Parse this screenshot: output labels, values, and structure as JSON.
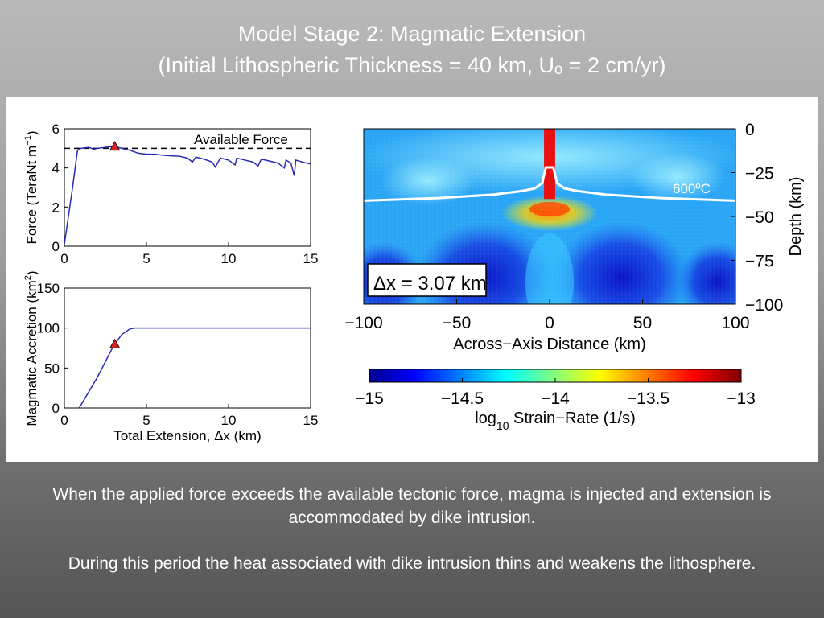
{
  "title": {
    "line1": "Model Stage 2: Magmatic Extension",
    "line2": "(Initial Lithospheric Thickness = 40 km, Uₒ = 2 cm/yr)"
  },
  "captions": [
    "When the applied force exceeds the available tectonic force, magma is injected and extension is accommodated by dike intrusion.",
    "During this period the heat associated with dike intrusion thins and weakens the lithosphere."
  ],
  "colors": {
    "line": "#2b2bb0",
    "marker": "#d42020",
    "background_dark": "#555555"
  },
  "chart_data": [
    {
      "type": "line",
      "name": "force",
      "ylabel": "Force (TeraNt m",
      "ylabel_sup": "−1",
      "ylabel_close": ")",
      "xlim": [
        0,
        15
      ],
      "ylim": [
        0,
        6
      ],
      "xticks": [
        "0",
        "5",
        "10",
        "15"
      ],
      "yticks": [
        "0",
        "2",
        "4",
        "6"
      ],
      "reference_line": {
        "y": 5.0,
        "label": "Available Force",
        "style": "dashed"
      },
      "x": [
        0,
        0.5,
        0.8,
        1.0,
        1.5,
        1.8,
        2.0,
        2.5,
        3.0,
        3.5,
        4.0,
        4.5,
        5.0,
        5.5,
        6.0,
        6.5,
        7.0,
        7.5,
        7.8,
        8.0,
        8.5,
        9.0,
        9.2,
        9.5,
        10.0,
        10.4,
        10.5,
        11.0,
        11.5,
        11.8,
        12.0,
        12.5,
        13.0,
        13.4,
        13.5,
        13.8,
        14.0,
        14.1,
        14.5,
        15.0
      ],
      "y": [
        0.1,
        3.0,
        4.9,
        5.0,
        5.05,
        4.95,
        5.0,
        5.05,
        5.1,
        5.0,
        4.9,
        4.75,
        4.7,
        4.7,
        4.65,
        4.62,
        4.6,
        4.5,
        4.3,
        4.55,
        4.45,
        4.3,
        4.05,
        4.5,
        4.4,
        4.15,
        4.5,
        4.4,
        4.3,
        4.1,
        4.45,
        4.35,
        4.25,
        4.0,
        4.4,
        4.25,
        3.6,
        4.4,
        4.3,
        4.2
      ],
      "marker": {
        "x": 3.07,
        "y": 5.1
      }
    },
    {
      "type": "line",
      "name": "magmatic-accretion",
      "ylabel": "Magmatic Accretion (km",
      "ylabel_sup": "2",
      "ylabel_close": ")",
      "xlabel": "Total Extension, Δx (km)",
      "xlim": [
        0,
        15
      ],
      "ylim": [
        0,
        150
      ],
      "xticks": [
        "0",
        "5",
        "10",
        "15"
      ],
      "yticks": [
        "0",
        "50",
        "100",
        "150"
      ],
      "x": [
        0.9,
        2.0,
        3.0,
        3.5,
        4.0,
        4.3,
        5.0,
        10.0,
        15.0
      ],
      "y": [
        0,
        38,
        78,
        92,
        99,
        100,
        100,
        100,
        100
      ],
      "marker": {
        "x": 3.07,
        "y": 80
      }
    },
    {
      "type": "heatmap",
      "name": "strain-rate-field",
      "xlabel": "Across−Axis Distance (km)",
      "ylabel": "Depth (km)",
      "xlim": [
        -100,
        100
      ],
      "ylim": [
        -100,
        0
      ],
      "xticks": [
        "−100",
        "−50",
        "0",
        "50",
        "100"
      ],
      "yticks": [
        "0",
        "−25",
        "−50",
        "−75",
        "−100"
      ],
      "annotation_extension": "Δx = 3.07 km",
      "isotherm_label": "600ºC",
      "isotherm": {
        "x": [
          -100,
          -60,
          -30,
          -15,
          -8,
          -4,
          -2,
          0,
          2,
          4,
          8,
          15,
          30,
          60,
          100
        ],
        "depth": [
          -41,
          -39.5,
          -37.5,
          -35.5,
          -34,
          -31,
          -22,
          -22,
          -22,
          -31,
          -34,
          -35.5,
          -37.5,
          -39.5,
          -41
        ]
      },
      "dike": {
        "x_min": -3,
        "x_max": 3,
        "depth_top": 0,
        "depth_bottom": -40
      },
      "colorbar": {
        "ticks": [
          "−15",
          "−14.5",
          "−14",
          "−13.5",
          "−13"
        ],
        "min": -15,
        "max": -13,
        "label_prefix": "log",
        "label_sub": "10",
        "label_rest": " Strain−Rate (1/s)"
      }
    }
  ]
}
